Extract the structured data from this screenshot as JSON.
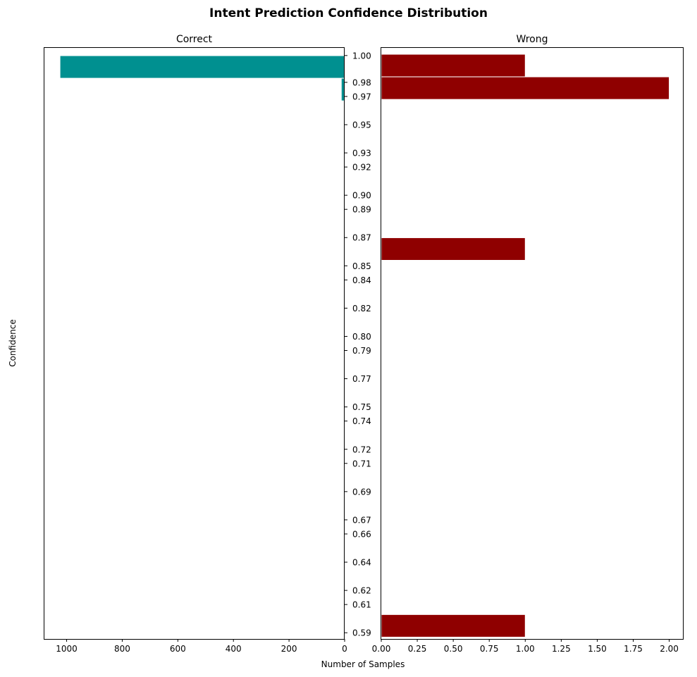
{
  "chart_data": {
    "type": "bar",
    "orientation": "horizontal",
    "title": "Intent Prediction Confidence Distribution",
    "xlabel": "Number of Samples",
    "ylabel": "Confidence",
    "y_tick_labels": [
      "1.00",
      "0.98",
      "0.97",
      "0.95",
      "0.93",
      "0.92",
      "0.90",
      "0.89",
      "0.87",
      "0.85",
      "0.84",
      "0.82",
      "0.80",
      "0.79",
      "0.77",
      "0.75",
      "0.74",
      "0.72",
      "0.71",
      "0.69",
      "0.67",
      "0.66",
      "0.64",
      "0.62",
      "0.61",
      "0.59"
    ],
    "y_tick_values": [
      0.998,
      0.979,
      0.969,
      0.949,
      0.929,
      0.919,
      0.899,
      0.889,
      0.869,
      0.849,
      0.839,
      0.819,
      0.799,
      0.789,
      0.769,
      0.749,
      0.739,
      0.719,
      0.709,
      0.689,
      0.669,
      0.659,
      0.639,
      0.619,
      0.609,
      0.589
    ],
    "ylim": [
      0.5846,
      1.0034
    ],
    "grid": false,
    "panels": [
      {
        "subtitle": "Correct",
        "color": "#009090",
        "x_inverted": true,
        "xlim": [
          0,
          1080
        ],
        "x_ticks": [
          0,
          200,
          400,
          600,
          800,
          1000
        ],
        "x_tick_labels": [
          "0",
          "200",
          "400",
          "600",
          "800",
          "1000"
        ],
        "bars": [
          {
            "y_low": 0.9819,
            "y_high": 0.9979,
            "value": 1024
          },
          {
            "y_low": 0.9659,
            "y_high": 0.9819,
            "value": 12
          }
        ]
      },
      {
        "subtitle": "Wrong",
        "color": "#8f0000",
        "x_inverted": false,
        "xlim": [
          0,
          2.1
        ],
        "x_ticks": [
          0,
          0.25,
          0.5,
          0.75,
          1.0,
          1.25,
          1.5,
          1.75,
          2.0
        ],
        "x_tick_labels": [
          "0.00",
          "0.25",
          "0.50",
          "0.75",
          "1.00",
          "1.25",
          "1.50",
          "1.75",
          "2.00"
        ],
        "bars": [
          {
            "y_low": 0.9829,
            "y_high": 0.9989,
            "value": 1
          },
          {
            "y_low": 0.9669,
            "y_high": 0.9829,
            "value": 2
          },
          {
            "y_low": 0.8529,
            "y_high": 0.8689,
            "value": 1
          },
          {
            "y_low": 0.5859,
            "y_high": 0.6019,
            "value": 1
          }
        ]
      }
    ]
  }
}
